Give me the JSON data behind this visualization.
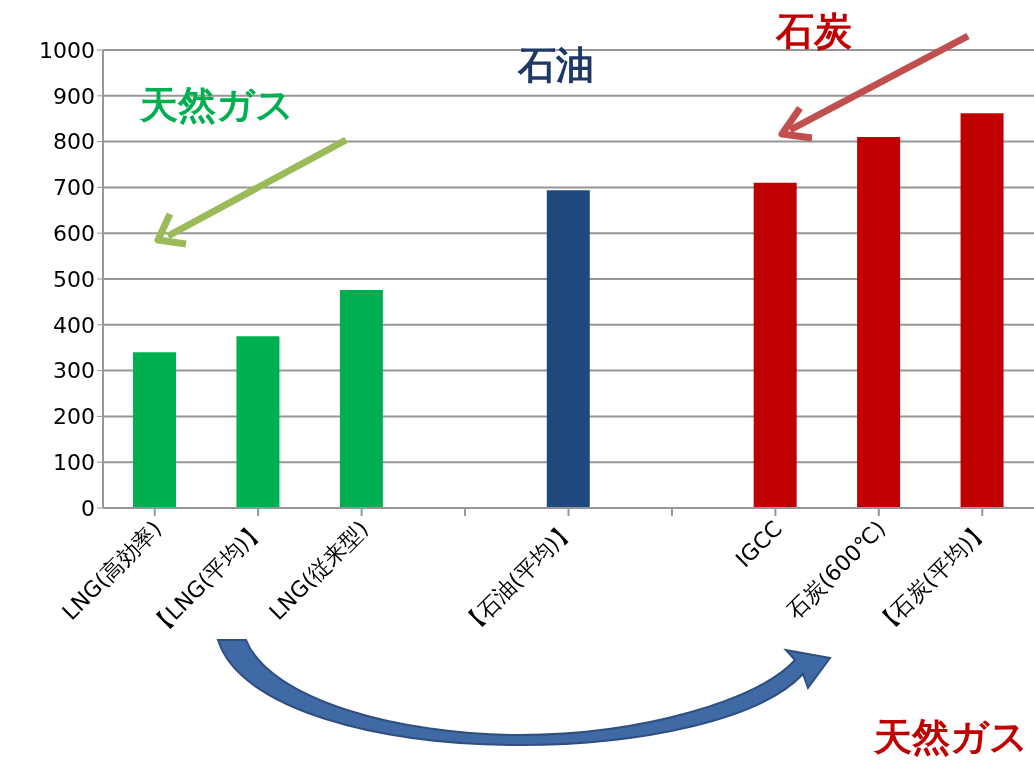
{
  "chart_data": {
    "type": "bar",
    "categories": [
      "LNG(高効率)",
      "【LNG(平均)】",
      "LNG(従来型)",
      null,
      "【石油(平均)】",
      null,
      "IGCC",
      "石炭(600℃)",
      "【石炭(平均)】"
    ],
    "values": [
      340,
      375,
      476,
      null,
      694,
      null,
      710,
      810,
      862
    ],
    "colors": [
      "#00b050",
      "#00b050",
      "#00b050",
      "#00b050",
      "#1f497d",
      "#1f497d",
      "#c00000",
      "#c00000",
      "#c00000"
    ],
    "ylim": [
      0,
      1000
    ],
    "yticks": [
      0,
      100,
      200,
      300,
      400,
      500,
      600,
      700,
      800,
      900,
      1000
    ],
    "grid": "y",
    "annotations": [
      "天然ガス",
      "石油",
      "石炭",
      "天然ガス"
    ]
  }
}
